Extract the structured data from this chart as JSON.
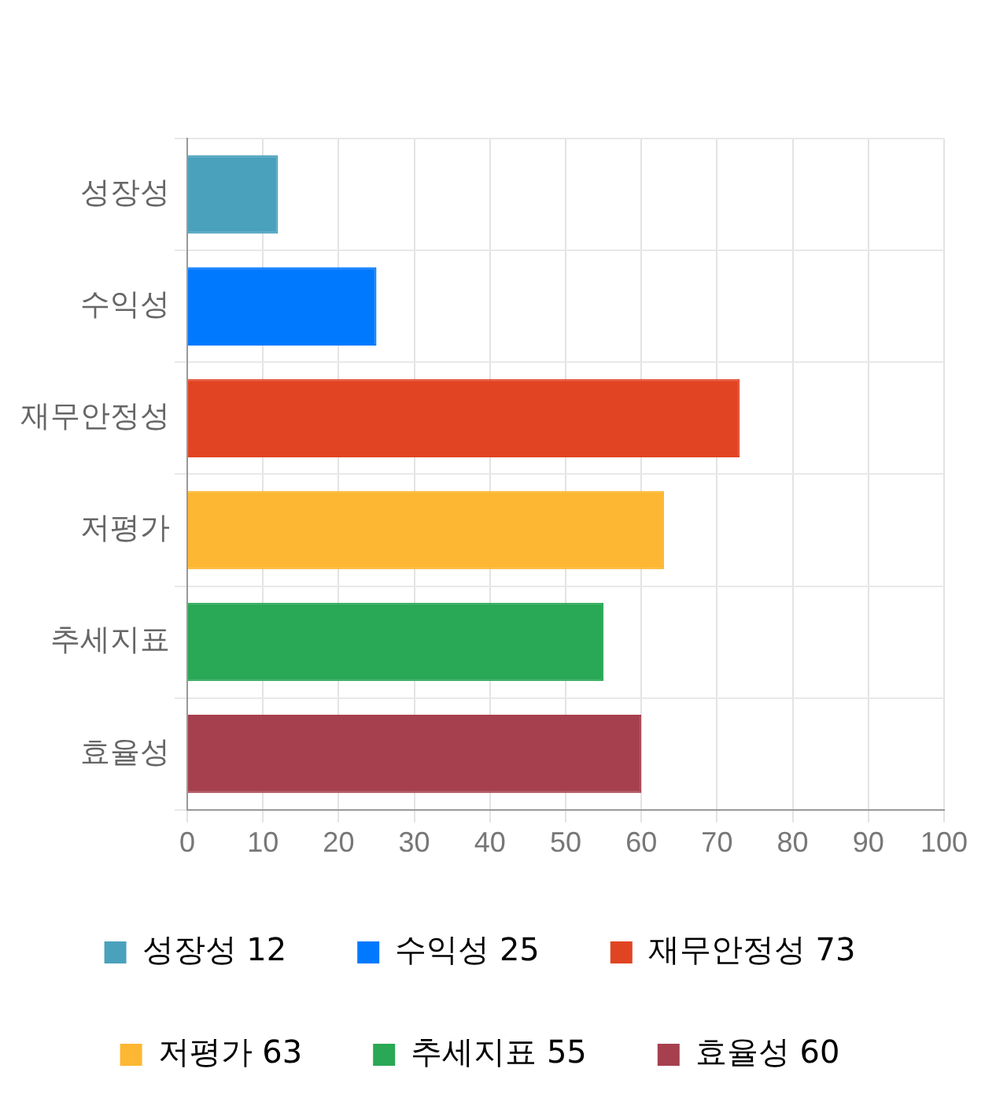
{
  "chart_data": {
    "type": "bar",
    "orientation": "horizontal",
    "categories": [
      "성장성",
      "수익성",
      "재무안정성",
      "저평가",
      "추세지표",
      "효율성"
    ],
    "series": [
      {
        "name": "성장성 12",
        "color": "#4aa1bc",
        "values": [
          12,
          null,
          null,
          null,
          null,
          null
        ]
      },
      {
        "name": "수익성 25",
        "color": "#0079fe",
        "values": [
          null,
          25,
          null,
          null,
          null,
          null
        ]
      },
      {
        "name": "재무안정성 73",
        "color": "#e14423",
        "values": [
          null,
          null,
          73,
          null,
          null,
          null
        ]
      },
      {
        "name": "저평가 63",
        "color": "#fdb732",
        "values": [
          null,
          null,
          null,
          63,
          null,
          null
        ]
      },
      {
        "name": "추세지표 55",
        "color": "#29a855",
        "values": [
          null,
          null,
          null,
          null,
          55,
          null
        ]
      },
      {
        "name": "효율성 60",
        "color": "#a6404e",
        "values": [
          null,
          null,
          null,
          null,
          null,
          60
        ]
      }
    ],
    "xlim": [
      0,
      100
    ],
    "xticks": [
      0,
      10,
      20,
      30,
      40,
      50,
      60,
      70,
      80,
      90,
      100
    ],
    "grid": true,
    "legend": "bottom"
  }
}
